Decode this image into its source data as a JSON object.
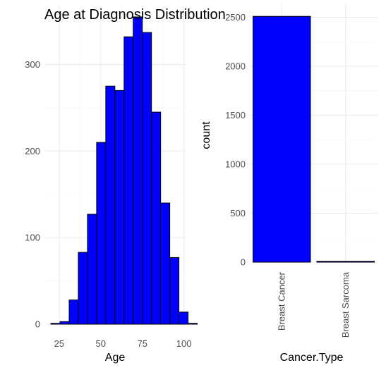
{
  "chart_data": [
    {
      "type": "bar",
      "subtype": "histogram",
      "title": "Age at Diagnosis Distribution",
      "xlabel": "Age",
      "ylabel": "",
      "xlim": [
        17,
        101
      ],
      "ylim": [
        0,
        368
      ],
      "x_ticks": [
        25,
        50,
        75,
        100
      ],
      "y_ticks": [
        0,
        100,
        200,
        300
      ],
      "bin_width": 5.5,
      "bin_start": 20,
      "values": [
        1,
        3,
        28,
        83,
        127,
        210,
        275,
        270,
        332,
        355,
        337,
        245,
        140,
        77,
        14,
        1
      ],
      "fill_color": "#0000ff",
      "stroke_color": "#000000",
      "grid": true
    },
    {
      "type": "bar",
      "title": "",
      "xlabel": "Cancer.Type",
      "ylabel": "count",
      "categories": [
        "Breast Cancer",
        "Breast Sarcoma"
      ],
      "values": [
        2509,
        9
      ],
      "ylim": [
        0,
        2640
      ],
      "y_ticks": [
        0,
        500,
        1000,
        1500,
        2000,
        2500
      ],
      "fill_color": "#0000ff",
      "stroke_color": "#000000",
      "grid": true
    }
  ]
}
